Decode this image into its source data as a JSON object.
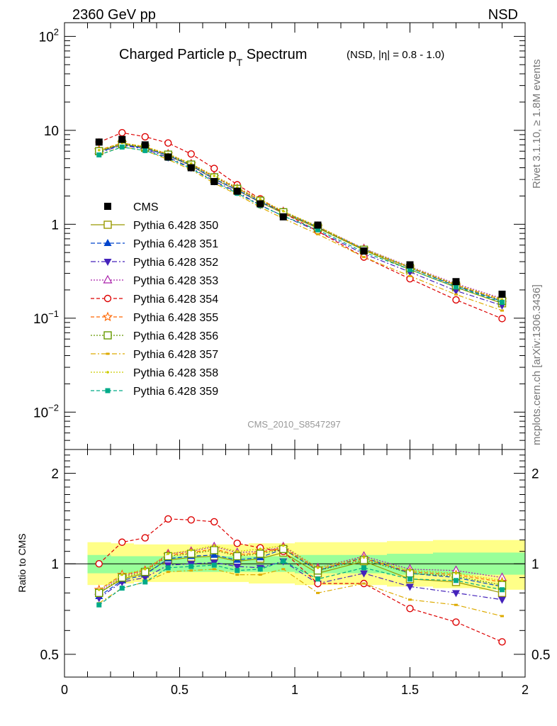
{
  "header": {
    "left_label": "2360 GeV pp",
    "right_label": "NSD"
  },
  "side_labels": {
    "rivet": "Rivet 3.1.10, ≥ 1.8M events",
    "mcplots": "mcplots.cern.ch [arXiv:1306.3436]"
  },
  "chart_data": [
    {
      "type": "line",
      "panel": "main",
      "title": "Charged Particle p",
      "title_sub": "T",
      "title_rest": " Spectrum",
      "title_note": "(NSD, |η| = 0.8 - 1.0)",
      "analysis_label": "CMS_2010_S8547297",
      "yscale": "log",
      "xlim": [
        0,
        2
      ],
      "ylim": [
        0.004,
        140
      ],
      "y_ticks": [
        {
          "v": 0.01,
          "base": "10",
          "exp": "−2"
        },
        {
          "v": 0.1,
          "base": "10",
          "exp": "−1"
        },
        {
          "v": 1,
          "base": "1",
          "exp": ""
        },
        {
          "v": 10,
          "base": "10",
          "exp": ""
        },
        {
          "v": 100,
          "base": "10",
          "exp": "2"
        }
      ],
      "legend_position": "left, mid-height",
      "x": [
        0.15,
        0.25,
        0.35,
        0.45,
        0.55,
        0.65,
        0.75,
        0.85,
        0.95,
        1.1,
        1.3,
        1.5,
        1.7,
        1.9
      ],
      "data_series": {
        "name": "CMS",
        "color": "#000000",
        "values": [
          7.5,
          8.0,
          7.0,
          5.2,
          4.0,
          2.85,
          2.25,
          1.65,
          1.2,
          0.98,
          0.52,
          0.37,
          0.245,
          0.18
        ]
      },
      "series": [
        {
          "name": "Pythia 6.428 350",
          "color": "#999900",
          "dash": "",
          "marker": "open-square",
          "ratio": [
            0.8,
            0.89,
            0.93,
            1.03,
            1.05,
            1.06,
            1.02,
            1.04,
            1.09,
            0.93,
            1.02,
            0.89,
            0.87,
            0.8
          ]
        },
        {
          "name": "Pythia 6.428 351",
          "color": "#0044cc",
          "dash": "6,3",
          "marker": "filled-triangle-up",
          "ratio": [
            0.78,
            0.88,
            0.92,
            1.04,
            1.06,
            1.07,
            1.03,
            1.05,
            1.12,
            0.95,
            1.05,
            0.93,
            0.9,
            0.84
          ]
        },
        {
          "name": "Pythia 6.428 352",
          "color": "#4422bb",
          "dash": "7,3,2,3",
          "marker": "filled-triangle-down",
          "ratio": [
            0.77,
            0.87,
            0.9,
            0.99,
            1.0,
            1.01,
            0.98,
            0.97,
            1.02,
            0.86,
            0.93,
            0.84,
            0.8,
            0.76
          ]
        },
        {
          "name": "Pythia 6.428 353",
          "color": "#aa22aa",
          "dash": "2,2",
          "marker": "open-triangle-up",
          "ratio": [
            0.81,
            0.91,
            0.95,
            1.08,
            1.1,
            1.14,
            1.09,
            1.1,
            1.14,
            0.97,
            1.06,
            0.96,
            0.95,
            0.9
          ]
        },
        {
          "name": "Pythia 6.428 354",
          "color": "#dd0000",
          "dash": "5,3",
          "marker": "open-circle",
          "ratio": [
            1.0,
            1.18,
            1.22,
            1.41,
            1.4,
            1.38,
            1.17,
            1.13,
            1.1,
            0.86,
            0.86,
            0.71,
            0.64,
            0.55
          ]
        },
        {
          "name": "Pythia 6.428 355",
          "color": "#ff6600",
          "dash": "5,3",
          "marker": "open-star",
          "ratio": [
            0.82,
            0.92,
            0.95,
            1.07,
            1.09,
            1.12,
            1.07,
            1.09,
            1.13,
            0.96,
            1.04,
            0.94,
            0.92,
            0.87
          ]
        },
        {
          "name": "Pythia 6.428 356",
          "color": "#669900",
          "dash": "2,2",
          "marker": "open-square",
          "ratio": [
            0.8,
            0.9,
            0.94,
            1.06,
            1.08,
            1.11,
            1.06,
            1.08,
            1.12,
            0.95,
            1.03,
            0.93,
            0.91,
            0.85
          ]
        },
        {
          "name": "Pythia 6.428 357",
          "color": "#ddaa00",
          "dash": "7,3,2,3",
          "marker": "dash-dot",
          "ratio": [
            0.74,
            0.83,
            0.87,
            0.94,
            0.95,
            0.96,
            0.92,
            0.92,
            0.96,
            0.8,
            0.86,
            0.76,
            0.73,
            0.67
          ]
        },
        {
          "name": "Pythia 6.428 358",
          "color": "#cccc00",
          "dash": "2,2",
          "marker": "small-dot",
          "ratio": [
            0.82,
            0.92,
            0.96,
            1.08,
            1.11,
            1.15,
            1.1,
            1.12,
            1.15,
            0.97,
            1.05,
            0.95,
            0.93,
            0.88
          ]
        },
        {
          "name": "Pythia 6.428 359",
          "color": "#00aa88",
          "dash": "5,3",
          "marker": "filled-square",
          "ratio": [
            0.73,
            0.83,
            0.87,
            0.97,
            0.98,
            0.99,
            0.95,
            0.96,
            1.02,
            0.89,
            0.97,
            0.89,
            0.88,
            0.82
          ]
        }
      ]
    },
    {
      "type": "line",
      "panel": "ratio",
      "ylabel": "Ratio to CMS",
      "yscale": "log",
      "xlim": [
        0,
        2
      ],
      "ylim": [
        0.42,
        2.4
      ],
      "x_tick_labels": [
        "0",
        "0.5",
        "1",
        "1.5",
        "2"
      ],
      "y_tick_labels": [
        {
          "v": 0.5,
          "label": "0.5"
        },
        {
          "v": 1,
          "label": "1"
        },
        {
          "v": 2,
          "label": "2"
        }
      ],
      "reference_line": 1,
      "uncertainty_bands": {
        "x_edges": [
          0.1,
          0.2,
          0.3,
          0.4,
          0.5,
          0.6,
          0.7,
          0.8,
          0.9,
          1.0,
          1.2,
          1.4,
          1.6,
          1.8,
          2.0
        ],
        "stat_color": "#99ff99",
        "syst_color": "#ffff88",
        "stat": [
          [
            0.93,
            1.07
          ],
          [
            0.93,
            1.06
          ],
          [
            0.94,
            1.06
          ],
          [
            0.94,
            1.06
          ],
          [
            0.94,
            1.06
          ],
          [
            0.94,
            1.06
          ],
          [
            0.94,
            1.06
          ],
          [
            0.94,
            1.06
          ],
          [
            0.94,
            1.06
          ],
          [
            0.93,
            1.07
          ],
          [
            0.93,
            1.07
          ],
          [
            0.92,
            1.08
          ],
          [
            0.92,
            1.09
          ],
          [
            0.92,
            1.09
          ]
        ],
        "syst": [
          [
            0.85,
            1.18
          ],
          [
            0.86,
            1.17
          ],
          [
            0.87,
            1.16
          ],
          [
            0.87,
            1.16
          ],
          [
            0.87,
            1.16
          ],
          [
            0.87,
            1.16
          ],
          [
            0.87,
            1.16
          ],
          [
            0.86,
            1.17
          ],
          [
            0.86,
            1.17
          ],
          [
            0.85,
            1.18
          ],
          [
            0.85,
            1.18
          ],
          [
            0.84,
            1.19
          ],
          [
            0.83,
            1.2
          ],
          [
            0.82,
            1.2
          ]
        ]
      }
    }
  ]
}
